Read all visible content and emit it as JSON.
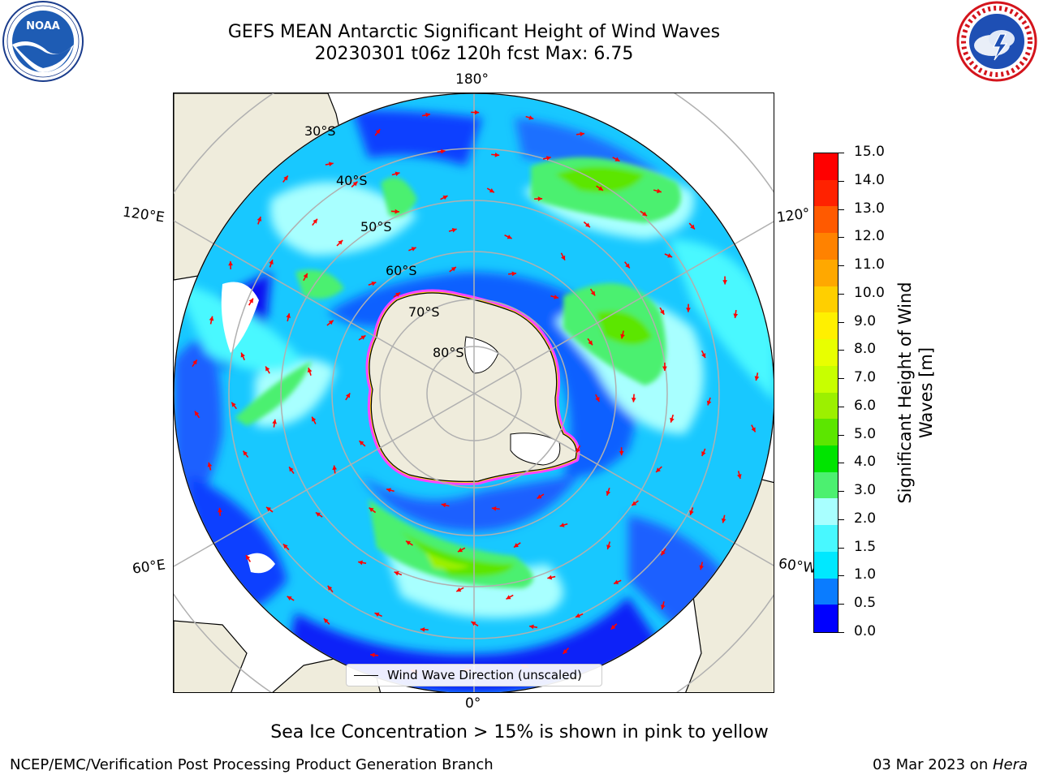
{
  "header": {
    "title_line1": "GEFS MEAN Antarctic Significant Height of Wind Waves",
    "title_line2": "20230301 t06z 120h fcst   Max: 6.75"
  },
  "logos": {
    "left": "noaa-logo",
    "right": "national-weather-service-logo"
  },
  "map": {
    "projection": "south polar stereographic",
    "longitude_labels": {
      "top": "180°",
      "bottom": "0°",
      "left_upper": "120°E",
      "left_lower": "60°E",
      "right_upper": "120°",
      "right_lower": "60°W"
    },
    "latitude_labels": [
      "30°S",
      "40°S",
      "50°S",
      "60°S",
      "70°S",
      "80°S"
    ],
    "legend_label": "Wind Wave Direction (unscaled)",
    "colors": {
      "land": "#efecdc",
      "sea_ice": "#ff44ff",
      "arrows": "#ff0000",
      "grid": "#b0b0b0"
    },
    "max_value": 6.75
  },
  "colorbar": {
    "title_line1": "Significant Height of Wind",
    "title_line2": "Waves [m]",
    "tick_labels": [
      "15.0",
      "14.0",
      "13.0",
      "12.0",
      "11.0",
      "10.0",
      "9.0",
      "8.0",
      "7.0",
      "6.0",
      "5.0",
      "4.0",
      "3.0",
      "2.0",
      "1.5",
      "1.0",
      "0.5",
      "0.0"
    ],
    "segment_colors": [
      "#ff0000",
      "#ff2200",
      "#ff5a00",
      "#ff8200",
      "#ffa800",
      "#ffcf00",
      "#fff000",
      "#e8ff00",
      "#c8ff00",
      "#9cf000",
      "#5ce600",
      "#00e400",
      "#4cf070",
      "#a8ffff",
      "#48f8ff",
      "#00e8ff",
      "#0a7cff",
      "#0000ff"
    ]
  },
  "footer": {
    "note": "Sea Ice Concentration > 15% is shown in pink to yellow",
    "left": "NCEP/EMC/Verification Post Processing Product Generation Branch",
    "right_date": "03 Mar 2023 on ",
    "right_host": "Hera"
  }
}
